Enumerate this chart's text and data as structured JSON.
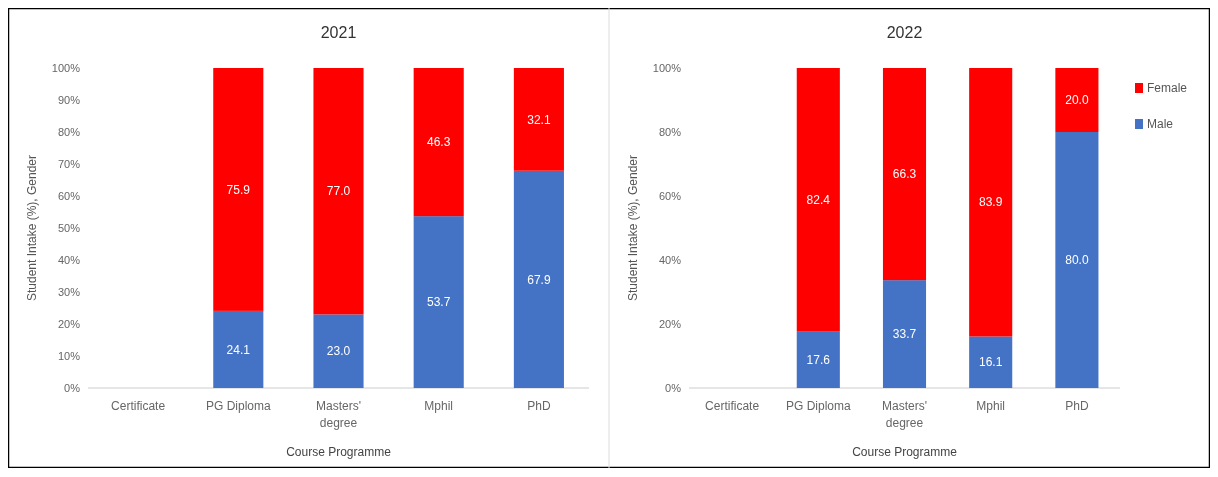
{
  "chart_data": [
    {
      "type": "bar",
      "stacked": true,
      "title": "2021",
      "xlabel": "Course Programme",
      "ylabel": "Student Intake (%), Gender",
      "categories": [
        "Certificate",
        "PG Diploma",
        "Masters' degree",
        "Mphil",
        "PhD"
      ],
      "ylim": [
        0,
        100
      ],
      "yticks": [
        {
          "value": 0,
          "label": "0%"
        },
        {
          "value": 10,
          "label": "10%"
        },
        {
          "value": 20,
          "label": "20%"
        },
        {
          "value": 30,
          "label": "30%"
        },
        {
          "value": 40,
          "label": "40%"
        },
        {
          "value": 50,
          "label": "50%"
        },
        {
          "value": 60,
          "label": "60%"
        },
        {
          "value": 70,
          "label": "70%"
        },
        {
          "value": 80,
          "label": "80%"
        },
        {
          "value": 90,
          "label": "90%"
        },
        {
          "value": 100,
          "label": "100%"
        }
      ],
      "grid": false,
      "legend": false,
      "series": [
        {
          "color": "#4472c4",
          "values": [
            null,
            24.1,
            23.0,
            53.7,
            67.9
          ],
          "value_labels": [
            null,
            "24.1",
            "23.0",
            "53.7",
            "67.9"
          ]
        },
        {
          "color": "#ff0000",
          "values": [
            null,
            75.9,
            77.0,
            46.3,
            32.1
          ],
          "value_labels": [
            null,
            "75.9",
            "77.0",
            "46.3",
            "32.1"
          ]
        }
      ]
    },
    {
      "type": "bar",
      "stacked": true,
      "title": "2022",
      "xlabel": "Course Programme",
      "ylabel": "Student Intake (%), Gender",
      "categories": [
        "Certificate",
        "PG Diploma",
        "Masters' degree",
        "Mphil",
        "PhD"
      ],
      "ylim": [
        0,
        100
      ],
      "yticks": [
        {
          "value": 0,
          "label": "0%"
        },
        {
          "value": 20,
          "label": "20%"
        },
        {
          "value": 40,
          "label": "40%"
        },
        {
          "value": 60,
          "label": "60%"
        },
        {
          "value": 80,
          "label": "80%"
        },
        {
          "value": 100,
          "label": "100%"
        }
      ],
      "grid": false,
      "legend": "right",
      "series": [
        {
          "name": "Male",
          "color": "#4472c4",
          "values": [
            null,
            17.6,
            33.7,
            16.1,
            80.0
          ],
          "value_labels": [
            null,
            "17.6",
            "33.7",
            "16.1",
            "80.0"
          ]
        },
        {
          "name": "Female",
          "color": "#ff0000",
          "values": [
            null,
            82.4,
            66.3,
            83.9,
            20.0
          ],
          "value_labels": [
            null,
            "82.4",
            "66.3",
            "83.9",
            "20.0"
          ]
        }
      ]
    }
  ]
}
